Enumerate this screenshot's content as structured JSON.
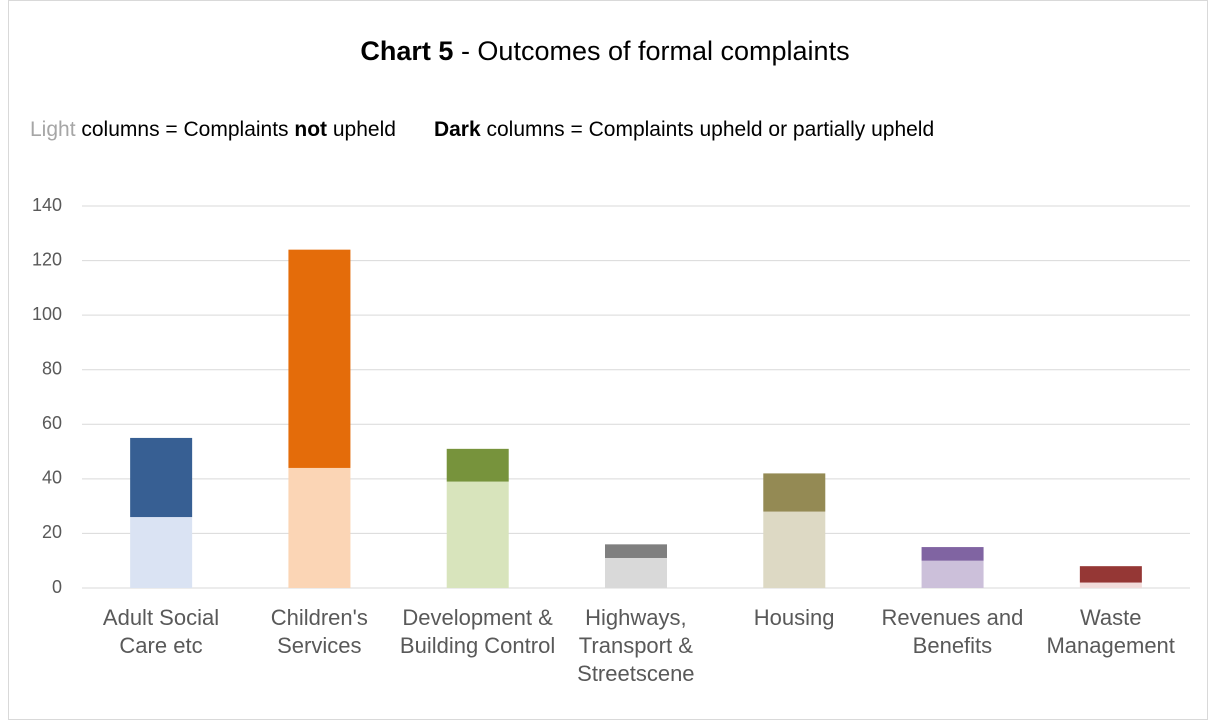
{
  "chart_data": {
    "type": "stacked_bar",
    "title": [
      "Chart 5",
      " - Outcomes of formal complaints"
    ],
    "subtitle": [
      [
        "Light",
        " columns = Complaints ",
        "not",
        " upheld"
      ],
      [
        "Dark",
        " columns = Complaints upheld or partially upheld"
      ]
    ],
    "categories": [
      "Adult Social Care etc",
      "Children's Services",
      "Development & Building Control",
      "Highways, Transport & Streetscene",
      "Housing",
      "Revenues and Benefits",
      "Waste Management"
    ],
    "series": [
      {
        "values": [
          26,
          44,
          39,
          11,
          28,
          10,
          2
        ],
        "colors": [
          "#dae3f3",
          "#fbd5b5",
          "#d8e4bc",
          "#d9d9d9",
          "#ddd9c4",
          "#ccc0da",
          "#f2dcdb"
        ]
      },
      {
        "values": [
          29,
          80,
          12,
          5,
          14,
          5,
          6
        ],
        "colors": [
          "#375f93",
          "#e46c0a",
          "#77933c",
          "#7f7f7f",
          "#948a54",
          "#8064a2",
          "#953735"
        ]
      }
    ],
    "ylim": [
      0,
      140
    ],
    "yticks": [
      0,
      20,
      40,
      60,
      80,
      100,
      120,
      140
    ],
    "grid": true
  }
}
